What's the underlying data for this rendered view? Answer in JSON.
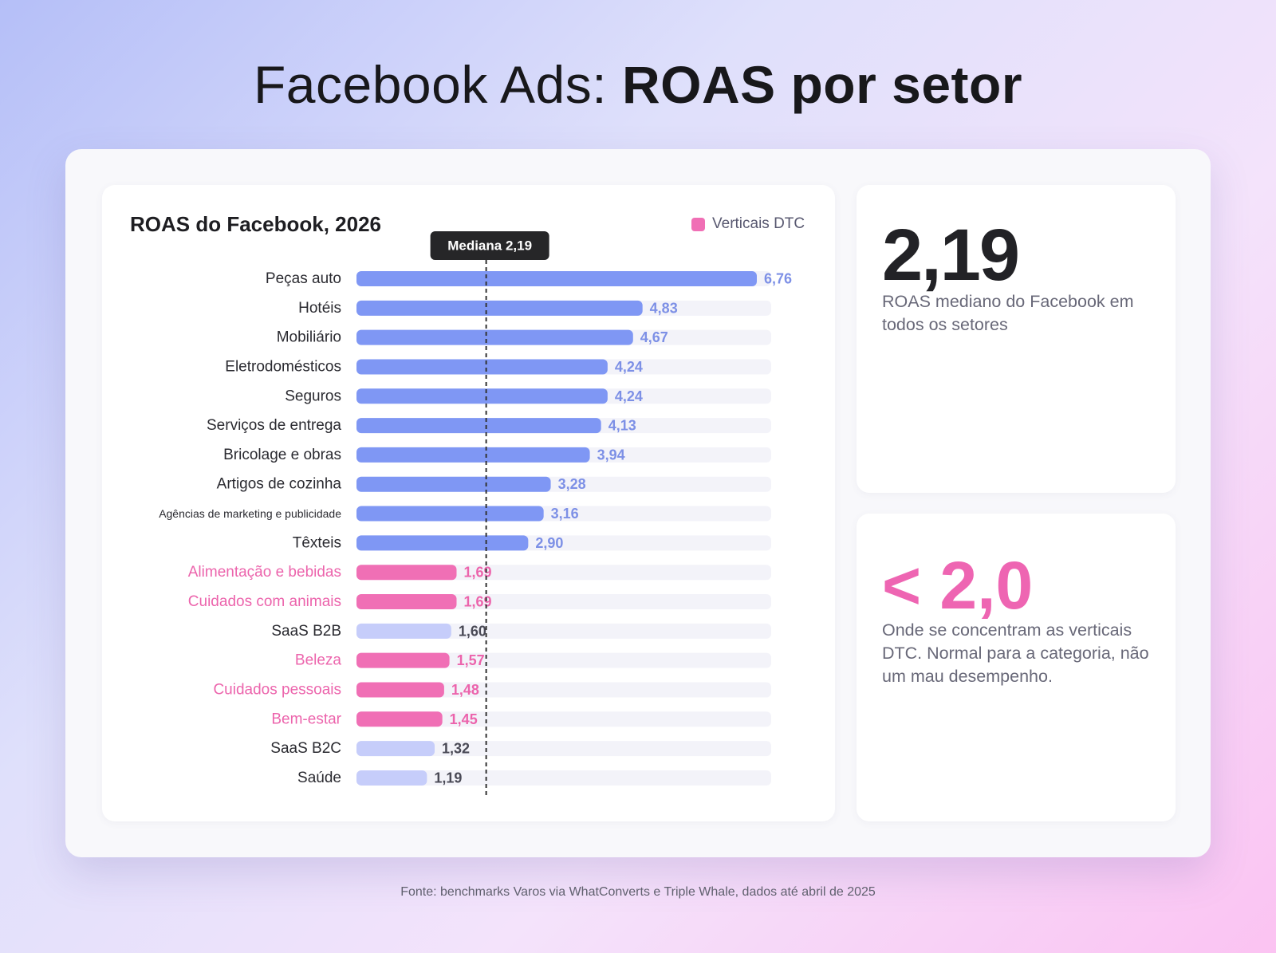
{
  "header": {
    "title_regular": "Facebook Ads: ",
    "title_bold": "ROAS por setor"
  },
  "chart_data": {
    "type": "bar",
    "orientation": "horizontal",
    "title": "ROAS do Facebook, 2026",
    "legend": {
      "label": "Verticais DTC",
      "color": "#f06fb5",
      "placement": "top-right"
    },
    "median": {
      "label": "Mediana 2,19",
      "value": 2.19
    },
    "xlim": [
      0,
      7
    ],
    "grid": false,
    "categories": [
      "Peças auto",
      "Hotéis",
      "Mobiliário",
      "Eletrodomésticos",
      "Seguros",
      "Serviços de entrega",
      "Bricolage e obras",
      "Artigos de cozinha",
      "Agências de marketing e publicidade",
      "Têxteis",
      "Alimentação e bebidas",
      "Cuidados com animais",
      "SaaS B2B",
      "Beleza",
      "Cuidados pessoais",
      "Bem-estar",
      "SaaS B2C",
      "Saúde"
    ],
    "values": [
      6.76,
      4.83,
      4.67,
      4.24,
      4.24,
      4.13,
      3.94,
      3.28,
      3.16,
      2.9,
      1.69,
      1.69,
      1.6,
      1.57,
      1.48,
      1.45,
      1.32,
      1.19
    ],
    "value_labels": [
      "6,76",
      "4,83",
      "4,67",
      "4,24",
      "4,24",
      "4,13",
      "3,94",
      "3,28",
      "3,16",
      "2,90",
      "1,69",
      "1,69",
      "1,60",
      "1,57",
      "1,48",
      "1,45",
      "1,32",
      "1,19"
    ],
    "groups": [
      "above",
      "above",
      "above",
      "above",
      "above",
      "above",
      "above",
      "above",
      "above",
      "above",
      "dtc",
      "dtc",
      "below",
      "dtc",
      "dtc",
      "dtc",
      "below",
      "below"
    ],
    "colors": {
      "above": "#7f97f4",
      "above_label": "#7d90e6",
      "dtc": "#f06fb5",
      "dtc_label": "#ec64ac",
      "below": "#c6cdfa",
      "below_label": "#4a4a56",
      "track": "#f3f3f9",
      "category_text": "#2a2a30",
      "median_line": "#333333"
    }
  },
  "stats": {
    "median_value": "2,19",
    "median_text": "ROAS mediano do Facebook em todos os setores",
    "dtc_value": "< 2,0",
    "dtc_text": "Onde se concentram as verticais DTC. Normal para a categoria, não um mau desempenho."
  },
  "footer": {
    "source": "Fonte: benchmarks Varos via WhatConverts e Triple Whale, dados até abril de 2025"
  }
}
